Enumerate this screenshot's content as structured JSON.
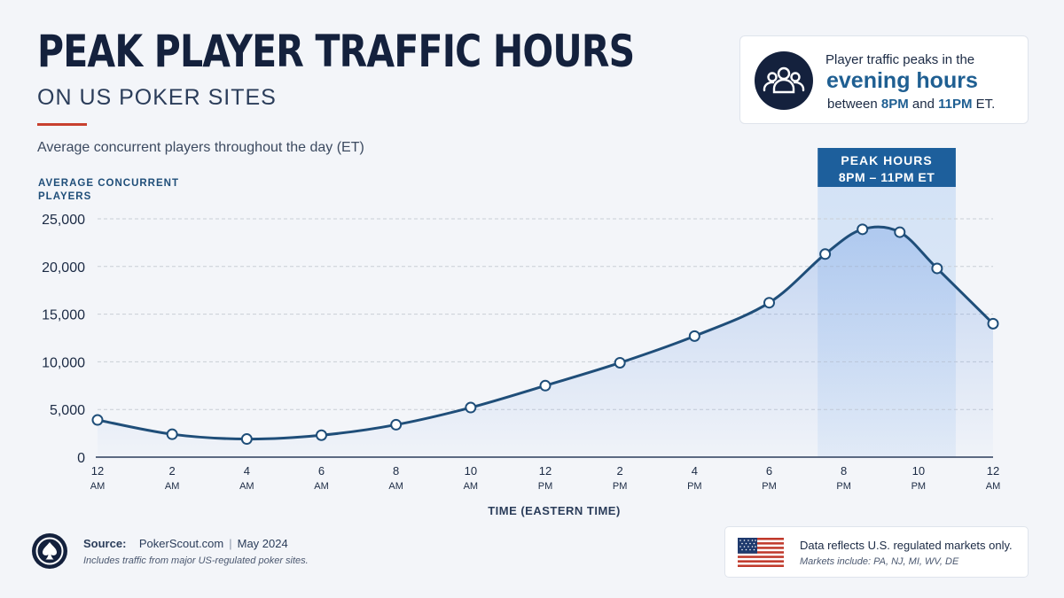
{
  "header": {
    "title": "PEAK PLAYER TRAFFIC HOURS",
    "subtitle": "ON US POKER SITES",
    "description": "Average concurrent players throughout the day (ET)"
  },
  "callout": {
    "icon": "users-icon",
    "lead": "Player traffic peaks in the",
    "highlight": "evening hours",
    "tail_prefix": "between",
    "tail_start": "8PM",
    "tail_and": "and",
    "tail_end": "11PM",
    "tail_suffix": "ET."
  },
  "chart_data": {
    "type": "line",
    "ylabel_line1": "AVERAGE CONCURRENT",
    "ylabel_line2": "PLAYERS",
    "xlabel": "TIME (EASTERN TIME)",
    "ylim": [
      0,
      25000
    ],
    "yticks": [
      0,
      5000,
      10000,
      15000,
      20000,
      25000
    ],
    "ytick_labels": [
      "0",
      "5,000",
      "10,000",
      "15,000",
      "20,000",
      "25,000"
    ],
    "xlim": [
      0,
      24
    ],
    "xticks": [
      {
        "hour": 0,
        "line1": "12",
        "line2": "AM"
      },
      {
        "hour": 2,
        "line1": "2",
        "line2": "AM"
      },
      {
        "hour": 4,
        "line1": "4",
        "line2": "AM"
      },
      {
        "hour": 6,
        "line1": "6",
        "line2": "AM"
      },
      {
        "hour": 8,
        "line1": "8",
        "line2": "AM"
      },
      {
        "hour": 10,
        "line1": "10",
        "line2": "AM"
      },
      {
        "hour": 12,
        "line1": "12",
        "line2": "PM"
      },
      {
        "hour": 14,
        "line1": "2",
        "line2": "PM"
      },
      {
        "hour": 16,
        "line1": "4",
        "line2": "PM"
      },
      {
        "hour": 18,
        "line1": "6",
        "line2": "PM"
      },
      {
        "hour": 20,
        "line1": "8",
        "line2": "PM"
      },
      {
        "hour": 22,
        "line1": "10",
        "line2": "PM"
      },
      {
        "hour": 24,
        "line1": "12",
        "line2": "AM"
      }
    ],
    "series": [
      {
        "points": [
          {
            "x": 0,
            "y": 3900
          },
          {
            "x": 2,
            "y": 2400
          },
          {
            "x": 4,
            "y": 1900
          },
          {
            "x": 6,
            "y": 2300
          },
          {
            "x": 8,
            "y": 3400
          },
          {
            "x": 10,
            "y": 5200
          },
          {
            "x": 12,
            "y": 7500
          },
          {
            "x": 14,
            "y": 9900
          },
          {
            "x": 16,
            "y": 12700
          },
          {
            "x": 18,
            "y": 16200
          },
          {
            "x": 19.5,
            "y": 21300
          },
          {
            "x": 20.5,
            "y": 23900
          },
          {
            "x": 21.5,
            "y": 23600
          },
          {
            "x": 22.5,
            "y": 19800
          },
          {
            "x": 24,
            "y": 14000
          }
        ]
      }
    ],
    "highlight_band": {
      "x_start": 19.3,
      "x_end": 23,
      "label_line1": "PEAK HOURS",
      "label_line2": "8PM – 11PM ET"
    },
    "grid": true,
    "colors": {
      "line": "#1f4e79",
      "fill": "#5b8fe0",
      "band": "#b9d3f3",
      "band_label_bg": "#1d5f9c",
      "grid": "#c9ced6"
    }
  },
  "footer": {
    "source_label": "Source:",
    "source_site": "PokerScout.com",
    "source_sep": "|",
    "source_date": "May 2024",
    "source_note": "Includes traffic from major US-regulated poker sites.",
    "source_icon": "spade-icon",
    "market_main": "Data reflects U.S. regulated markets only.",
    "market_sub": "Markets include: PA, NJ, MI, WV, DE",
    "flag_icon": "us-flag-icon"
  }
}
